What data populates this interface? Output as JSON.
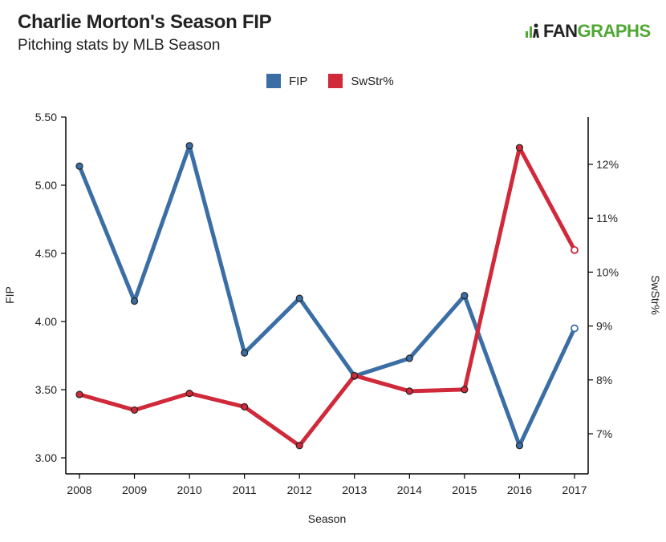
{
  "header": {
    "title": "Charlie Morton's Season FIP",
    "subtitle": "Pitching stats by MLB Season",
    "logo_text_1": "FAN",
    "logo_text_2": "GRAPHS"
  },
  "colors": {
    "fip": "#3a6ea5",
    "swstr": "#d0293a",
    "logo_green": "#4fa833"
  },
  "chart_data": {
    "type": "line",
    "xlabel": "Season",
    "ylabel": "FIP",
    "y2label": "SwStr%",
    "categories": [
      "2008",
      "2009",
      "2010",
      "2011",
      "2012",
      "2013",
      "2014",
      "2015",
      "2016",
      "2017"
    ],
    "ylim": [
      3.0,
      5.5
    ],
    "yticks": [
      "3.00",
      "3.50",
      "4.00",
      "4.50",
      "5.00",
      "5.50"
    ],
    "y2lim": [
      6.3,
      12.6
    ],
    "y2ticks": [
      "7%",
      "8%",
      "9%",
      "10%",
      "11%",
      "12%"
    ],
    "legend_position": "top-center",
    "series": [
      {
        "name": "FIP",
        "axis": "left",
        "values": [
          5.14,
          4.15,
          5.29,
          3.77,
          4.17,
          3.6,
          3.73,
          4.19,
          3.09,
          3.95
        ]
      },
      {
        "name": "SwStr%",
        "axis": "right",
        "values": [
          7.73,
          7.44,
          7.75,
          7.5,
          6.78,
          8.08,
          7.79,
          7.82,
          12.31,
          10.41
        ]
      }
    ]
  }
}
